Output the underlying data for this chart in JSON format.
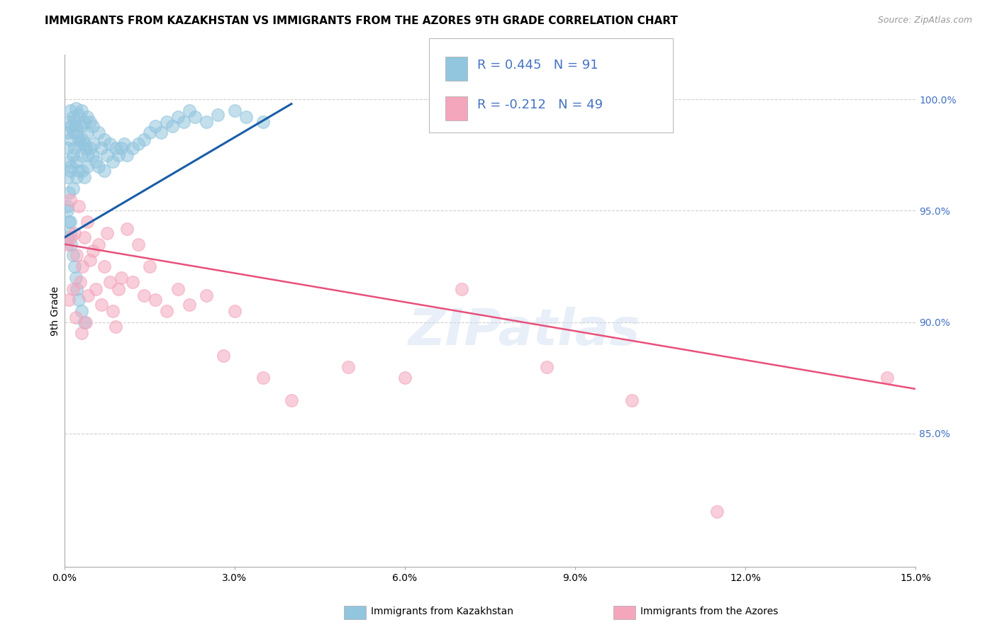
{
  "title": "IMMIGRANTS FROM KAZAKHSTAN VS IMMIGRANTS FROM THE AZORES 9TH GRADE CORRELATION CHART",
  "source": "Source: ZipAtlas.com",
  "ylabel": "9th Grade",
  "xlim": [
    0.0,
    15.0
  ],
  "ylim": [
    79.0,
    102.0
  ],
  "right_yticks": [
    85.0,
    90.0,
    95.0,
    100.0
  ],
  "legend_r1": "R = 0.445",
  "legend_n1": "N = 91",
  "legend_r2": "R = -0.212",
  "legend_n2": "N = 49",
  "color_blue": "#92c5de",
  "color_pink": "#f4a6bd",
  "line_color_blue": "#1a5ea8",
  "line_color_pink": "#e8507a",
  "legend_label1": "Immigrants from Kazakhstan",
  "legend_label2": "Immigrants from the Azores",
  "watermark": "ZIPatlas",
  "blue_scatter_x": [
    0.05,
    0.05,
    0.05,
    0.05,
    0.05,
    0.08,
    0.08,
    0.08,
    0.1,
    0.1,
    0.1,
    0.1,
    0.12,
    0.12,
    0.15,
    0.15,
    0.15,
    0.15,
    0.18,
    0.18,
    0.2,
    0.2,
    0.2,
    0.22,
    0.22,
    0.25,
    0.25,
    0.25,
    0.28,
    0.3,
    0.3,
    0.3,
    0.32,
    0.32,
    0.35,
    0.35,
    0.35,
    0.38,
    0.4,
    0.4,
    0.4,
    0.42,
    0.45,
    0.45,
    0.5,
    0.5,
    0.52,
    0.55,
    0.6,
    0.6,
    0.65,
    0.7,
    0.7,
    0.75,
    0.8,
    0.85,
    0.9,
    0.95,
    1.0,
    1.05,
    1.1,
    1.2,
    1.3,
    1.4,
    1.5,
    1.6,
    1.7,
    1.8,
    1.9,
    2.0,
    2.1,
    2.2,
    2.3,
    2.5,
    2.7,
    3.0,
    3.2,
    3.5,
    0.05,
    0.08,
    0.1,
    0.12,
    0.15,
    0.18,
    0.2,
    0.22,
    0.25,
    0.3,
    0.35
  ],
  "blue_scatter_y": [
    98.5,
    97.8,
    96.5,
    95.2,
    93.8,
    99.0,
    97.2,
    95.8,
    99.5,
    98.2,
    96.8,
    94.5,
    98.8,
    97.0,
    99.2,
    98.5,
    97.5,
    96.0,
    99.0,
    97.8,
    99.6,
    98.8,
    97.2,
    98.5,
    96.5,
    99.3,
    98.2,
    96.8,
    98.0,
    99.5,
    98.8,
    97.5,
    98.2,
    96.8,
    99.0,
    98.0,
    96.5,
    97.8,
    99.2,
    98.5,
    97.0,
    97.5,
    99.0,
    97.8,
    98.8,
    97.5,
    98.0,
    97.2,
    98.5,
    97.0,
    97.8,
    98.2,
    96.8,
    97.5,
    98.0,
    97.2,
    97.8,
    97.5,
    97.8,
    98.0,
    97.5,
    97.8,
    98.0,
    98.2,
    98.5,
    98.8,
    98.5,
    99.0,
    98.8,
    99.2,
    99.0,
    99.5,
    99.2,
    99.0,
    99.3,
    99.5,
    99.2,
    99.0,
    95.0,
    94.5,
    94.0,
    93.5,
    93.0,
    92.5,
    92.0,
    91.5,
    91.0,
    90.5,
    90.0
  ],
  "pink_scatter_x": [
    0.05,
    0.08,
    0.1,
    0.12,
    0.15,
    0.18,
    0.2,
    0.22,
    0.25,
    0.28,
    0.3,
    0.32,
    0.35,
    0.38,
    0.4,
    0.42,
    0.45,
    0.5,
    0.55,
    0.6,
    0.65,
    0.7,
    0.75,
    0.8,
    0.85,
    0.9,
    0.95,
    1.0,
    1.1,
    1.2,
    1.3,
    1.4,
    1.5,
    1.6,
    1.8,
    2.0,
    2.2,
    2.5,
    2.8,
    3.0,
    3.5,
    4.0,
    5.0,
    6.0,
    7.0,
    8.5,
    10.0,
    11.5,
    14.5
  ],
  "pink_scatter_y": [
    93.5,
    91.0,
    95.5,
    93.8,
    91.5,
    94.0,
    90.2,
    93.0,
    95.2,
    91.8,
    89.5,
    92.5,
    93.8,
    90.0,
    94.5,
    91.2,
    92.8,
    93.2,
    91.5,
    93.5,
    90.8,
    92.5,
    94.0,
    91.8,
    90.5,
    89.8,
    91.5,
    92.0,
    94.2,
    91.8,
    93.5,
    91.2,
    92.5,
    91.0,
    90.5,
    91.5,
    90.8,
    91.2,
    88.5,
    90.5,
    87.5,
    86.5,
    88.0,
    87.5,
    91.5,
    88.0,
    86.5,
    81.5,
    87.5
  ],
  "blue_line_x": [
    0.0,
    4.0
  ],
  "blue_line_y": [
    93.8,
    99.8
  ],
  "pink_line_x": [
    0.0,
    15.0
  ],
  "pink_line_y": [
    93.5,
    87.0
  ],
  "grid_color": "#d0d0d0",
  "background_color": "#ffffff",
  "title_fontsize": 11,
  "axis_label_fontsize": 10,
  "tick_fontsize": 10,
  "right_tick_color": "#4472c4",
  "xticks": [
    0,
    3,
    6,
    9,
    12,
    15
  ]
}
